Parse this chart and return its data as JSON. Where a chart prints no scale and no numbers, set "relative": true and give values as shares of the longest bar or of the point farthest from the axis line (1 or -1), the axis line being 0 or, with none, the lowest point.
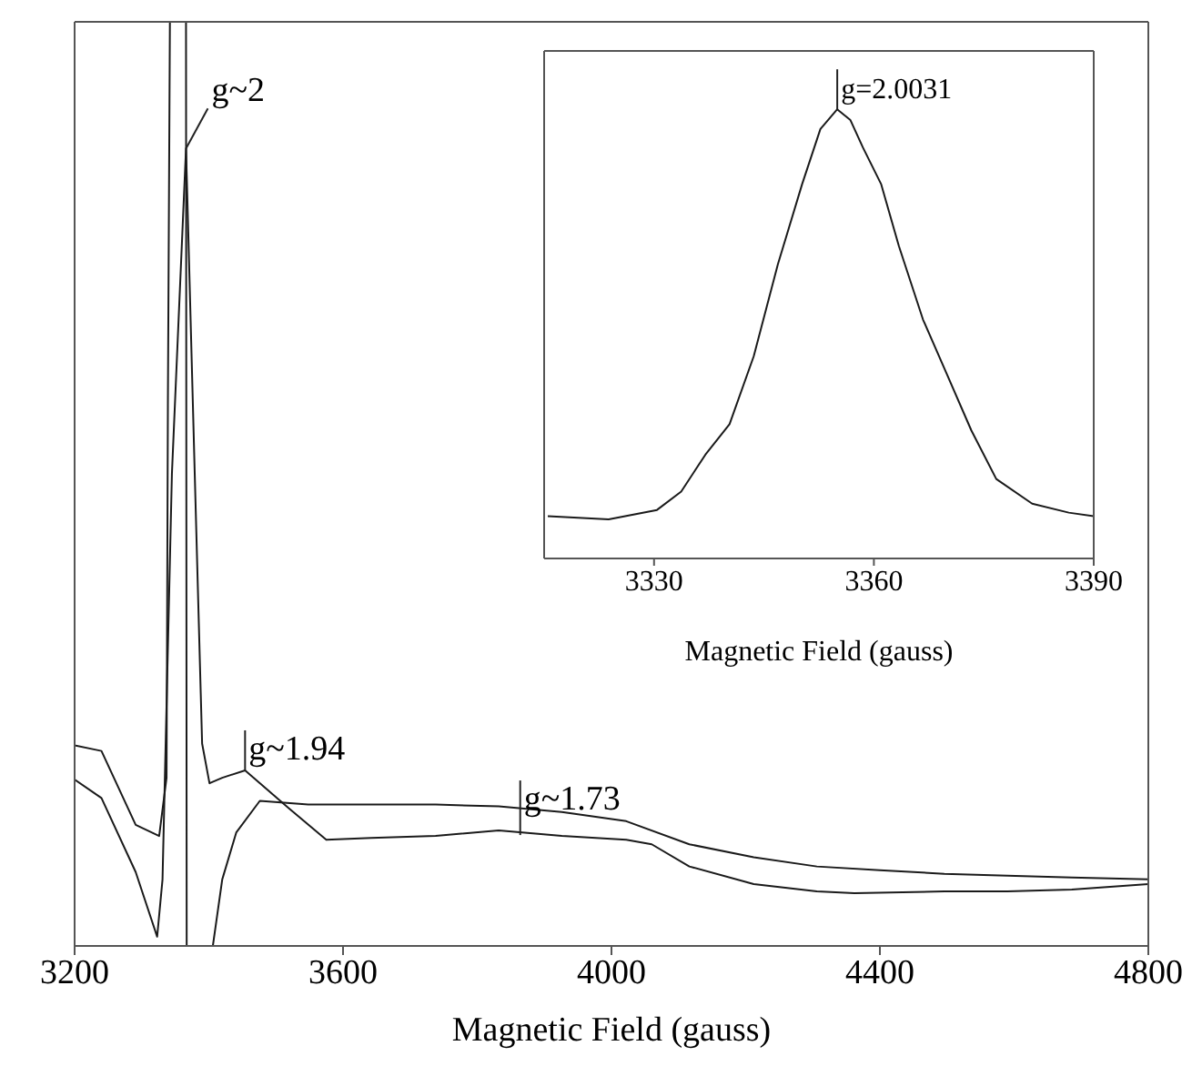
{
  "chart_data": [
    {
      "type": "line",
      "xlabel": "Magnetic Field (gauss)",
      "relative": true,
      "xlim": [
        3200,
        4800
      ],
      "xticks": [
        3200,
        3600,
        4000,
        4400,
        4800
      ],
      "series": [
        {
          "color": "#1a1a1a",
          "x": [
            3200,
            3240,
            3291,
            3326,
            3337,
            3339,
            3342,
            3366,
            3367,
            3406,
            3420,
            3441,
            3476,
            3548,
            3738,
            3832,
            3926,
            4022,
            4116,
            4212,
            4306,
            4400,
            4496,
            4590,
            4686,
            4800
          ],
          "values": [
            0.217,
            0.211,
            0.131,
            0.119,
            0.182,
            0.585,
            1.0,
            1.0,
            0,
            0,
            0.072,
            0.123,
            0.157,
            0.153,
            0.153,
            0.151,
            0.145,
            0.135,
            0.11,
            0.096,
            0.086,
            0.082,
            0.078,
            0.076,
            0.074,
            0.072
          ]
        },
        {
          "color": "#1a1a1a",
          "x": [
            3200,
            3240,
            3291,
            3323,
            3331,
            3345,
            3366,
            3379,
            3390,
            3401,
            3420,
            3454,
            3519,
            3575,
            3642,
            3738,
            3832,
            3926,
            4022,
            4060,
            4116,
            4212,
            4306,
            4362,
            4496,
            4590,
            4686,
            4800
          ],
          "values": [
            0.18,
            0.16,
            0.08,
            0.01,
            0.072,
            0.511,
            0.863,
            0.511,
            0.219,
            0.176,
            0.182,
            0.19,
            0.149,
            0.115,
            0.117,
            0.119,
            0.125,
            0.119,
            0.115,
            0.11,
            0.086,
            0.067,
            0.059,
            0.057,
            0.059,
            0.059,
            0.061,
            0.067
          ]
        }
      ],
      "annotations": [
        {
          "text": "g~2",
          "x": 3366,
          "y": 0.863
        },
        {
          "text": "g~1.94",
          "x": 3454,
          "y": 0.19
        },
        {
          "text": "g~1.73",
          "x": 3864,
          "y": 0.12
        }
      ]
    },
    {
      "type": "line",
      "xlabel": "Magnetic Field (gauss)",
      "relative": true,
      "xlim": [
        3315,
        3390
      ],
      "xticks": [
        3330,
        3360,
        3390
      ],
      "series": [
        {
          "color": "#1a1a1a",
          "x": [
            3315.5,
            3323.8,
            3330.4,
            3333.7,
            3337,
            3340.3,
            3343.6,
            3346.9,
            3350.2,
            3352.7,
            3355,
            3356.8,
            3358.5,
            3361,
            3363.4,
            3366.7,
            3370,
            3373.3,
            3376.7,
            3381.6,
            3386.6,
            3390
          ],
          "values": [
            0.094,
            0.087,
            0.108,
            0.149,
            0.231,
            0.299,
            0.45,
            0.655,
            0.833,
            0.956,
            1,
            0.976,
            0.915,
            0.833,
            0.696,
            0.532,
            0.409,
            0.285,
            0.177,
            0.122,
            0.102,
            0.094
          ]
        }
      ],
      "annotations": [
        {
          "text": "g=2.0031",
          "x": 3355,
          "y": 1
        }
      ]
    }
  ]
}
